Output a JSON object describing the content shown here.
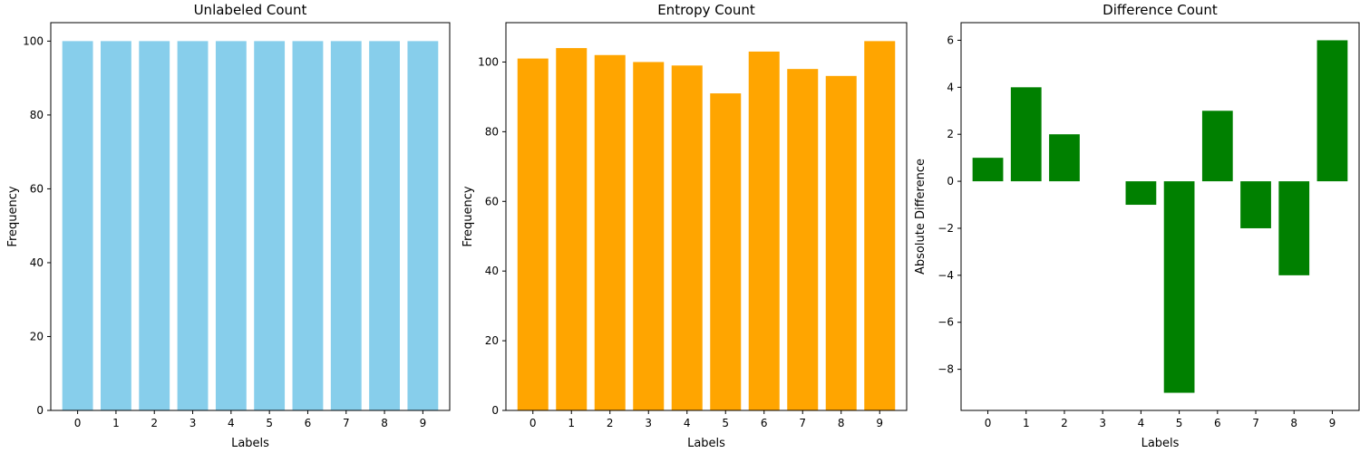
{
  "chart_data": [
    {
      "type": "bar",
      "title": "Unlabeled Count",
      "xlabel": "Labels",
      "ylabel": "Frequency",
      "categories": [
        "0",
        "1",
        "2",
        "3",
        "4",
        "5",
        "6",
        "7",
        "8",
        "9"
      ],
      "values": [
        100,
        100,
        100,
        100,
        100,
        100,
        100,
        100,
        100,
        100
      ],
      "ylim": [
        0,
        105
      ],
      "yticks": [
        0,
        20,
        40,
        60,
        80,
        100
      ],
      "color": "#87CEEB",
      "grid": false
    },
    {
      "type": "bar",
      "title": "Entropy Count",
      "xlabel": "Labels",
      "ylabel": "Frequency",
      "categories": [
        "0",
        "1",
        "2",
        "3",
        "4",
        "5",
        "6",
        "7",
        "8",
        "9"
      ],
      "values": [
        101,
        104,
        102,
        100,
        99,
        91,
        103,
        98,
        96,
        106
      ],
      "ylim": [
        0,
        111.3
      ],
      "yticks": [
        0,
        20,
        40,
        60,
        80,
        100
      ],
      "color": "#FFA500",
      "grid": false
    },
    {
      "type": "bar",
      "title": "Difference Count",
      "xlabel": "Labels",
      "ylabel": "Absolute Difference",
      "categories": [
        "0",
        "1",
        "2",
        "3",
        "4",
        "5",
        "6",
        "7",
        "8",
        "9"
      ],
      "values": [
        1,
        4,
        2,
        0,
        -1,
        -9,
        3,
        -2,
        -4,
        6
      ],
      "ylim": [
        -9.75,
        6.75
      ],
      "yticks": [
        -8,
        -6,
        -4,
        -2,
        0,
        2,
        4,
        6
      ],
      "color": "#008000",
      "grid": false
    }
  ]
}
